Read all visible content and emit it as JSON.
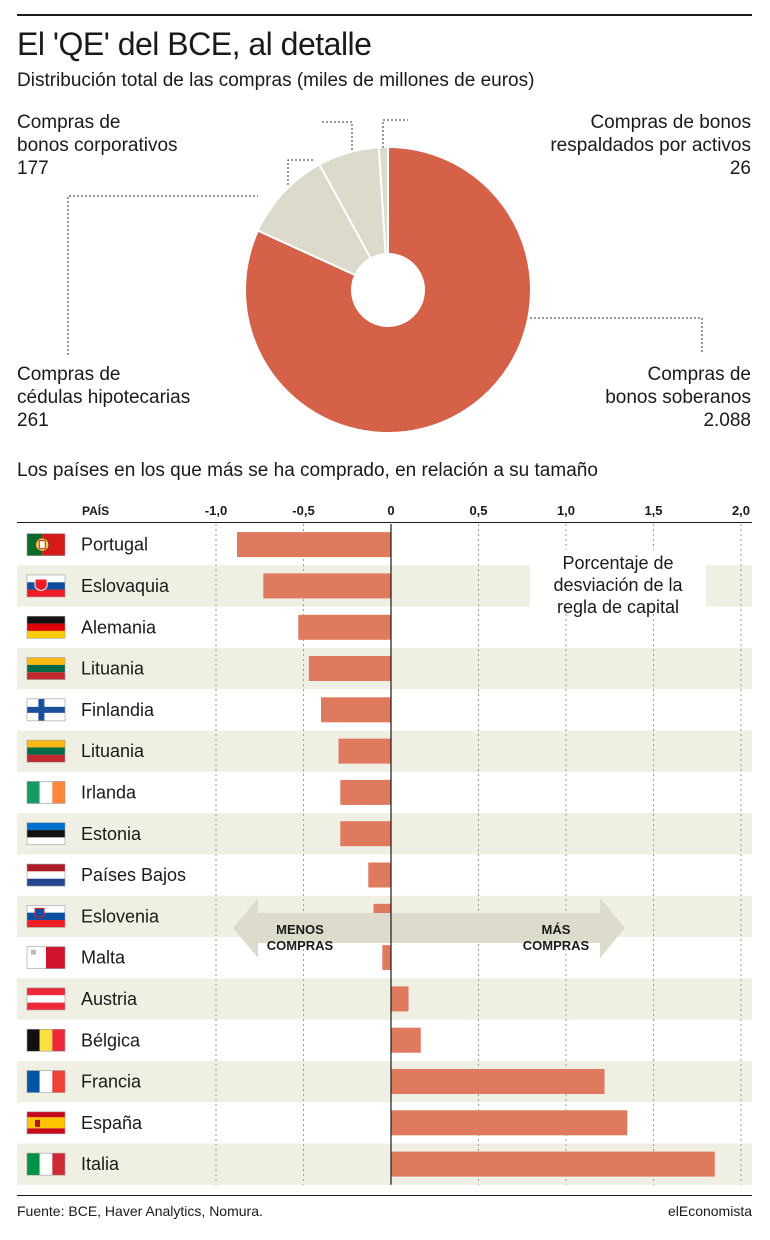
{
  "header": {
    "title": "El 'QE' del BCE, al detalle",
    "subtitle": "Distribución total de las compras (miles de millones de euros)"
  },
  "pie_labels": {
    "corporativos": {
      "line1": "Compras de",
      "line2": "bonos corporativos",
      "value": "177"
    },
    "activos": {
      "line1": "Compras de bonos",
      "line2": "respaldados por activos",
      "value": "26"
    },
    "hipotecarias": {
      "line1": "Compras de",
      "line2": "cédulas hipotecarias",
      "value": "261"
    },
    "soberanos": {
      "line1": "Compras de",
      "line2": "bonos soberanos",
      "value": "2.088"
    }
  },
  "bar_section": {
    "title": "Los países en los que más se ha comprado, en relación a su tamaño",
    "country_header": "PAÍS",
    "annotation": [
      "Porcentaje de",
      "desviación de la",
      "regla de capital"
    ],
    "arrow_left": [
      "MENOS",
      "COMPRAS"
    ],
    "arrow_right": [
      "MÁS",
      "COMPRAS"
    ]
  },
  "colors": {
    "pie_main": "#d46148",
    "pie_other": "#dcdacb",
    "bar": "#e07a5f",
    "band": "#f0efe3",
    "arrow": "#dcdbcc"
  },
  "chart_data": [
    {
      "type": "pie",
      "title": "Distribución total de las compras (miles de millones de euros)",
      "slices": [
        {
          "label": "Compras de bonos soberanos",
          "value": 2088
        },
        {
          "label": "Compras de cédulas hipotecarias",
          "value": 261
        },
        {
          "label": "Compras de bonos corporativos",
          "value": 177
        },
        {
          "label": "Compras de bonos respaldados por activos",
          "value": 26
        }
      ]
    },
    {
      "type": "bar",
      "orientation": "horizontal",
      "title": "Los países en los que más se ha comprado, en relación a su tamaño",
      "xlabel": "Porcentaje de desviación de la regla de capital",
      "xlim": [
        -1.0,
        2.0
      ],
      "xticks": [
        -1.0,
        -0.5,
        0,
        0.5,
        1.0,
        1.5,
        2.0
      ],
      "xtick_labels": [
        "-1,0",
        "-0,5",
        "0",
        "0,5",
        "1,0",
        "1,5",
        "2,0"
      ],
      "categories": [
        "Portugal",
        "Eslovaquia",
        "Alemania",
        "Lituania",
        "Finlandia",
        "Lituania",
        "Irlanda",
        "Estonia",
        "Países Bajos",
        "Eslovenia",
        "Malta",
        "Austria",
        "Bélgica",
        "Francia",
        "España",
        "Italia"
      ],
      "flags": [
        "portugal",
        "eslovaquia",
        "alemania",
        "lituania",
        "finlandia",
        "lituania",
        "irlanda",
        "estonia",
        "paises-bajos",
        "eslovenia",
        "malta",
        "austria",
        "belgica",
        "francia",
        "espana",
        "italia"
      ],
      "values": [
        -0.88,
        -0.73,
        -0.53,
        -0.47,
        -0.4,
        -0.3,
        -0.29,
        -0.29,
        -0.13,
        -0.1,
        -0.05,
        0.1,
        0.17,
        1.22,
        1.35,
        1.85
      ]
    }
  ],
  "footer": {
    "source": "Fuente: BCE, Haver Analytics, Nomura.",
    "brand": "elEconomista"
  }
}
